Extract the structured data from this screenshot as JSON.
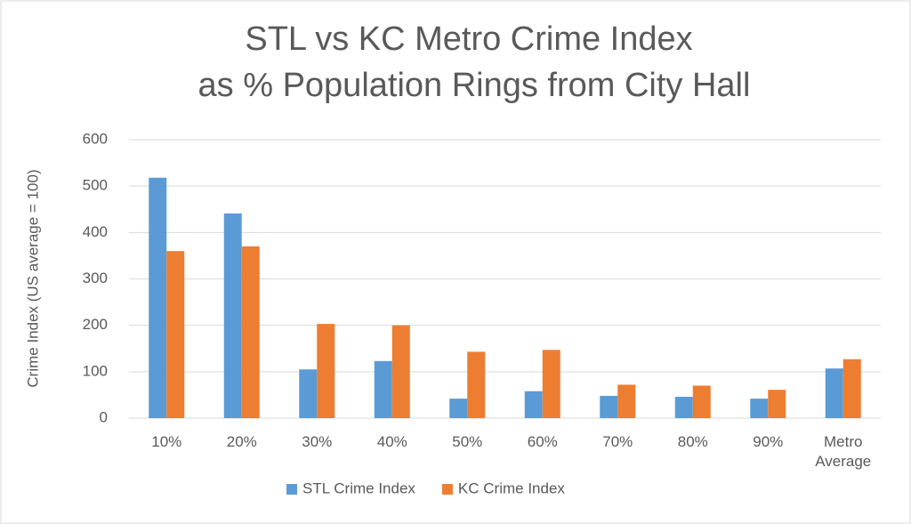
{
  "chart_data": {
    "type": "bar",
    "title": [
      "STL vs KC Metro Crime Index",
      "as % Population Rings from City Hall"
    ],
    "y_label": "Crime Index (US average = 100)",
    "categories": [
      "10%",
      "20%",
      "30%",
      "40%",
      "50%",
      "60%",
      "70%",
      "80%",
      "90%",
      "Metro Average"
    ],
    "series": [
      {
        "name": "STL Crime Index",
        "color": "#5b9bd5",
        "values": [
          518,
          441,
          105,
          123,
          42,
          58,
          48,
          46,
          42,
          107
        ]
      },
      {
        "name": "KC Crime Index",
        "color": "#ed7d31",
        "values": [
          360,
          370,
          203,
          200,
          143,
          147,
          72,
          70,
          61,
          127
        ]
      }
    ],
    "ylim": [
      0,
      600
    ],
    "yticks": [
      0,
      100,
      200,
      300,
      400,
      500,
      600
    ],
    "grid": true,
    "legend": "bottom"
  }
}
